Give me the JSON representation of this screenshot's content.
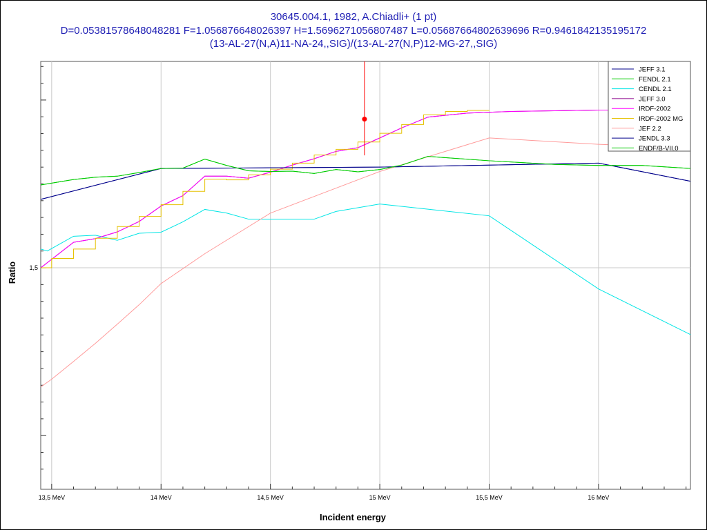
{
  "chart_data": {
    "type": "line",
    "title_lines": [
      "30645.004.1, 1982, A.Chiadli+ (1 pt)",
      "D=0.05381578648048281 F=1.056876648026397 H=1.5696271056807487 L=0.05687664802639696 R=0.9461842135195172",
      "(13-AL-27(N,A)11-NA-24,,SIG)/(13-AL-27(N,P)12-MG-27,,SIG)"
    ],
    "xlabel": "Incident energy",
    "ylabel": "Ratio",
    "x_unit": "MeV",
    "xlim": [
      13.45,
      16.42
    ],
    "ylim": [
      1.434,
      1.5615
    ],
    "x_ticks": [
      {
        "value": 13.5,
        "label": "13,5 MeV"
      },
      {
        "value": 14.0,
        "label": "14 MeV"
      },
      {
        "value": 14.5,
        "label": "14,5 MeV"
      },
      {
        "value": 15.0,
        "label": "15 MeV"
      },
      {
        "value": 15.5,
        "label": "15,5 MeV"
      },
      {
        "value": 16.0,
        "label": "16 MeV"
      }
    ],
    "y_ticks": [
      {
        "value": 1.5,
        "label": "1,5"
      }
    ],
    "grid": true,
    "legend_position": "top-right",
    "series": [
      {
        "name": "JEFF 3.1",
        "color": "#00008b",
        "step": false,
        "x": [
          13.45,
          14.0,
          14.5,
          15.0,
          15.5,
          16.0,
          16.42
        ],
        "y": [
          1.5204,
          1.5296,
          1.5298,
          1.53,
          1.5306,
          1.5312,
          1.5258
        ]
      },
      {
        "name": "FENDL 2.1",
        "color": "#00cc00",
        "step": false,
        "x": [
          13.45,
          13.6,
          13.7,
          13.8,
          13.9,
          14.0,
          14.1,
          14.2,
          14.3,
          14.4,
          14.5,
          14.6,
          14.7,
          14.8,
          14.9,
          15.0,
          15.1,
          15.22,
          15.5,
          15.8,
          16.0,
          16.2,
          16.42
        ],
        "y": [
          1.5247,
          1.5263,
          1.527,
          1.5273,
          1.5284,
          1.5296,
          1.5297,
          1.5324,
          1.5305,
          1.5289,
          1.5287,
          1.5288,
          1.5281,
          1.5293,
          1.5286,
          1.5293,
          1.5306,
          1.5332,
          1.5319,
          1.5308,
          1.5305,
          1.5305,
          1.5296
        ]
      },
      {
        "name": "CENDL 2.1",
        "color": "#00e5e5",
        "step": false,
        "x": [
          13.45,
          13.48,
          13.6,
          13.7,
          13.8,
          13.9,
          14.0,
          14.1,
          14.2,
          14.3,
          14.4,
          14.5,
          14.6,
          14.7,
          14.8,
          15.0,
          15.5,
          16.0,
          16.42
        ],
        "y": [
          1.5056,
          1.505,
          1.5094,
          1.5097,
          1.5082,
          1.5103,
          1.5106,
          1.5137,
          1.5174,
          1.5163,
          1.5145,
          1.5145,
          1.5145,
          1.5145,
          1.5168,
          1.519,
          1.5155,
          1.4937,
          1.4801
        ]
      },
      {
        "name": "JEFF 3.0",
        "color": "#8b008b",
        "step": false,
        "x": [
          13.45,
          13.6,
          13.7,
          13.8,
          13.9,
          14.0,
          14.1,
          14.2,
          14.3,
          14.4,
          14.5,
          14.6,
          14.7,
          14.8,
          14.9,
          15.0,
          15.1,
          15.22,
          15.4,
          15.6,
          15.8,
          16.0,
          16.42
        ],
        "y": [
          1.5,
          1.5076,
          1.5087,
          1.5107,
          1.5138,
          1.5184,
          1.5215,
          1.5273,
          1.5273,
          1.5267,
          1.5285,
          1.5306,
          1.5325,
          1.5347,
          1.5358,
          1.5387,
          1.5417,
          1.5449,
          1.5461,
          1.5466,
          1.5468,
          1.547,
          1.547
        ]
      },
      {
        "name": "IRDF-2002",
        "color": "#ff00ff",
        "step": false,
        "x": [
          13.45,
          13.6,
          13.7,
          13.8,
          13.9,
          14.0,
          14.1,
          14.2,
          14.3,
          14.4,
          14.5,
          14.6,
          14.7,
          14.8,
          14.9,
          15.0,
          15.1,
          15.22,
          15.4,
          15.6,
          15.8,
          16.0,
          16.42
        ],
        "y": [
          1.5,
          1.5076,
          1.5087,
          1.5107,
          1.5138,
          1.5184,
          1.5215,
          1.5273,
          1.5273,
          1.5267,
          1.5285,
          1.5306,
          1.5325,
          1.5347,
          1.5358,
          1.5387,
          1.5417,
          1.5449,
          1.5461,
          1.5466,
          1.5468,
          1.547,
          1.547
        ]
      },
      {
        "name": "IRDF-2002 MG",
        "color": "#e5c100",
        "step": true,
        "x": [
          13.45,
          13.5,
          13.6,
          13.7,
          13.8,
          13.9,
          14.0,
          14.1,
          14.2,
          14.3,
          14.4,
          14.5,
          14.6,
          14.7,
          14.8,
          14.9,
          15.0,
          15.1,
          15.2,
          15.3,
          15.4,
          15.5
        ],
        "y": [
          1.5,
          1.5028,
          1.5056,
          1.5088,
          1.5123,
          1.5153,
          1.5188,
          1.5228,
          1.5264,
          1.5262,
          1.5277,
          1.5294,
          1.5312,
          1.5336,
          1.5353,
          1.5375,
          1.5401,
          1.5427,
          1.5456,
          1.5466,
          1.5469,
          1.547
        ]
      },
      {
        "name": "JEF 2.2",
        "color": "#ff9a9a",
        "step": false,
        "x": [
          13.45,
          13.5,
          13.6,
          13.7,
          13.8,
          13.9,
          14.0,
          14.2,
          14.5,
          15.0,
          15.5,
          16.0,
          16.42
        ],
        "y": [
          1.4645,
          1.4668,
          1.4721,
          1.4775,
          1.4832,
          1.489,
          1.4953,
          1.5042,
          1.5163,
          1.5287,
          1.5387,
          1.5368,
          1.5358
        ]
      },
      {
        "name": "JENDL 3.3",
        "color": "#00008b",
        "step": false,
        "x": [
          13.45,
          14.0,
          14.5,
          15.0,
          15.5,
          16.0,
          16.42
        ],
        "y": [
          1.5204,
          1.5296,
          1.5298,
          1.53,
          1.5306,
          1.5312,
          1.5258
        ]
      },
      {
        "name": "ENDF/B-VII.0",
        "color": "#00cc00",
        "step": false,
        "x": [
          13.45,
          13.6,
          13.7,
          13.8,
          13.9,
          14.0,
          14.1,
          14.2,
          14.3,
          14.4,
          14.5,
          14.6,
          14.7,
          14.8,
          14.9,
          15.0,
          15.1,
          15.22,
          15.5,
          15.8,
          16.0,
          16.2,
          16.42
        ],
        "y": [
          1.5247,
          1.5263,
          1.527,
          1.5273,
          1.5284,
          1.5296,
          1.5297,
          1.5324,
          1.5305,
          1.5289,
          1.5287,
          1.5288,
          1.5281,
          1.5293,
          1.5286,
          1.5293,
          1.5306,
          1.5332,
          1.5319,
          1.5308,
          1.5305,
          1.5305,
          1.5296
        ]
      }
    ],
    "experimental_points": [
      {
        "x": 14.93,
        "y": 1.5443,
        "y_err_low": 1.5335,
        "y_err_high": 1.5615,
        "color": "#ff0000"
      }
    ]
  }
}
